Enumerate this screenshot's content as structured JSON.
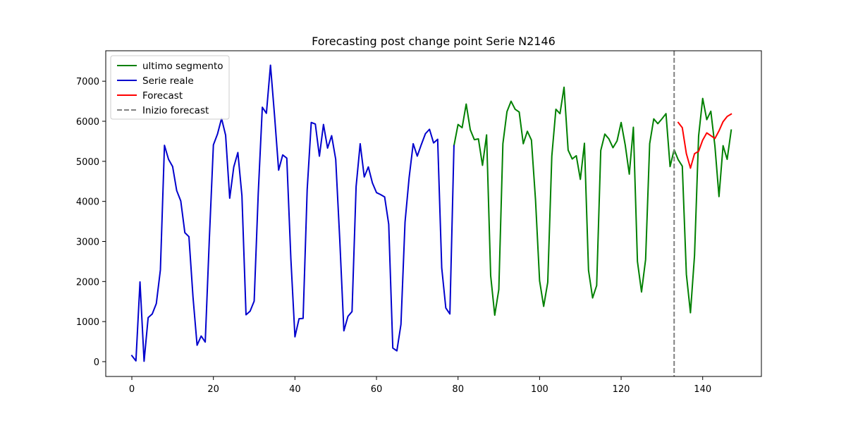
{
  "chart_data": {
    "type": "line",
    "title": "Forecasting post change point Serie N2146",
    "xlabel": "",
    "ylabel": "",
    "xlim": [
      -6.4,
      154.4
    ],
    "ylim": [
      -370,
      7760
    ],
    "xticks": [
      0,
      20,
      40,
      60,
      80,
      100,
      120,
      140
    ],
    "yticks": [
      0,
      1000,
      2000,
      3000,
      4000,
      5000,
      6000,
      7000
    ],
    "grid": false,
    "legend_position": "top-left",
    "vline": {
      "x": 133,
      "name": "Inizio forecast",
      "color": "#808080",
      "style": "dashed"
    },
    "series": [
      {
        "name": "ultimo segmento",
        "color": "#008000",
        "x_start": 79,
        "values": [
          5390,
          5920,
          5840,
          6430,
          5790,
          5540,
          5560,
          4900,
          5660,
          2150,
          1160,
          1800,
          5440,
          6240,
          6500,
          6300,
          6230,
          5440,
          5750,
          5530,
          4040,
          2020,
          1380,
          1980,
          5130,
          6300,
          6190,
          6850,
          5280,
          5060,
          5140,
          4550,
          5450,
          2280,
          1590,
          1900,
          5270,
          5680,
          5560,
          5340,
          5510,
          5970,
          5410,
          4680,
          5850,
          2500,
          1740,
          2550,
          5440,
          6060,
          5940,
          6060,
          6190,
          4870,
          5290,
          5040,
          4880,
          2180,
          1220,
          2650,
          5630,
          6570,
          6040,
          6250,
          5380,
          4120,
          5390,
          5050,
          5780
        ]
      },
      {
        "name": "Serie reale",
        "color": "#0000cd",
        "x_start": 0,
        "values": [
          150,
          20,
          1990,
          10,
          1100,
          1190,
          1450,
          2290,
          5400,
          5050,
          4870,
          4270,
          4010,
          3220,
          3120,
          1610,
          410,
          640,
          490,
          3050,
          5410,
          5680,
          6070,
          5650,
          4080,
          4860,
          5220,
          4140,
          1170,
          1260,
          1510,
          4200,
          6350,
          6200,
          7400,
          6140,
          4780,
          5160,
          5080,
          2570,
          620,
          1070,
          1080,
          4290,
          5970,
          5930,
          5130,
          5920,
          5330,
          5640,
          5050,
          3030,
          770,
          1130,
          1250,
          4370,
          5440,
          4610,
          4860,
          4460,
          4220,
          4170,
          4110,
          3430,
          340,
          270,
          930,
          3480,
          4590,
          5440,
          5130,
          5420,
          5690,
          5800,
          5460,
          5550,
          2340,
          1340,
          1190,
          5390
        ]
      },
      {
        "name": "Forecast",
        "color": "#ff0000",
        "x_start": 134,
        "values": [
          5970,
          5840,
          5190,
          4830,
          5190,
          5250,
          5530,
          5710,
          5640,
          5570,
          5760,
          5990,
          6120,
          6180
        ]
      }
    ]
  }
}
